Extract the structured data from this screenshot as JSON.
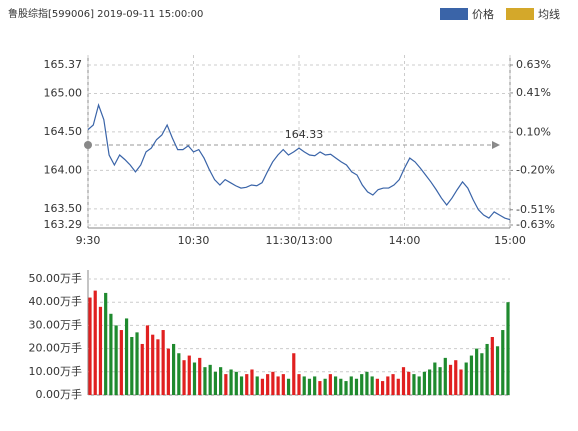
{
  "chart_data": [
    {
      "type": "line",
      "title": "鲁股综指[599006] 2019-09-11 15:00:00",
      "x": [
        0,
        3,
        6,
        9,
        12,
        15,
        18,
        21,
        24,
        27,
        30,
        33,
        36,
        39,
        42,
        45,
        48,
        51,
        54,
        57,
        60,
        63,
        66,
        69,
        72,
        75,
        78,
        81,
        84,
        87,
        90,
        93,
        96,
        99,
        102,
        105,
        108,
        111,
        114,
        117,
        120,
        123,
        126,
        129,
        132,
        135,
        138,
        141,
        144,
        147,
        150,
        153,
        156,
        159,
        162,
        165,
        168,
        171,
        174,
        177,
        180,
        183,
        186,
        189,
        192,
        195,
        198,
        201,
        204,
        207,
        210,
        213,
        216,
        219,
        222,
        225,
        228,
        231,
        234,
        237,
        240
      ],
      "series": [
        {
          "name": "价格",
          "color": "#3a64a8",
          "values": [
            164.53,
            164.59,
            164.85,
            164.66,
            164.2,
            164.07,
            164.2,
            164.14,
            164.07,
            163.98,
            164.07,
            164.24,
            164.29,
            164.4,
            164.46,
            164.59,
            164.42,
            164.27,
            164.27,
            164.32,
            164.24,
            164.27,
            164.16,
            164.01,
            163.88,
            163.81,
            163.88,
            163.84,
            163.8,
            163.77,
            163.78,
            163.81,
            163.8,
            163.84,
            163.98,
            164.11,
            164.2,
            164.27,
            164.2,
            164.24,
            164.29,
            164.24,
            164.2,
            164.19,
            164.24,
            164.2,
            164.21,
            164.16,
            164.11,
            164.07,
            163.98,
            163.94,
            163.81,
            163.72,
            163.68,
            163.75,
            163.77,
            163.77,
            163.81,
            163.88,
            164.03,
            164.16,
            164.11,
            164.03,
            163.94,
            163.85,
            163.75,
            163.64,
            163.55,
            163.64,
            163.75,
            163.85,
            163.77,
            163.62,
            163.49,
            163.42,
            163.38,
            163.46,
            163.42,
            163.38,
            163.36
          ]
        },
        {
          "name": "均线",
          "color": "#d4a82a"
        }
      ],
      "reference": 164.33,
      "up_color": "#e02020",
      "down_color": "#1f8a2e",
      "xlim": [
        0,
        240
      ],
      "xticks": [
        {
          "value": 0,
          "label": "9:30"
        },
        {
          "value": 60,
          "label": "10:30"
        },
        {
          "value": 120,
          "label": "11:30/13:00"
        },
        {
          "value": 180,
          "label": "14:00"
        },
        {
          "value": 240,
          "label": "15:00"
        }
      ],
      "ylim": [
        163.29,
        165.37
      ],
      "yticks": [
        165.37,
        {
          "value": 165,
          "label": "165.00"
        },
        {
          "value": 164.5,
          "label": "164.50"
        },
        {
          "value": 164,
          "label": "164.00"
        },
        {
          "value": 163.5,
          "label": "163.50"
        },
        163.29
      ],
      "y2lim": [
        -0.63,
        0.63
      ],
      "y2ticks": [
        {
          "value": 0.63,
          "label": "0.63%"
        },
        {
          "value": 0.41,
          "label": "0.41%"
        },
        {
          "value": 0.1,
          "label": "0.10%"
        },
        {
          "value": -0.2,
          "label": "-0.20%"
        },
        {
          "value": -0.51,
          "label": "-0.51%"
        },
        {
          "value": -0.63,
          "label": "-0.63%"
        }
      ],
      "grid": true
    },
    {
      "type": "bar",
      "x": [
        0,
        3,
        6,
        9,
        12,
        15,
        18,
        21,
        24,
        27,
        30,
        33,
        36,
        39,
        42,
        45,
        48,
        51,
        54,
        57,
        60,
        63,
        66,
        69,
        72,
        75,
        78,
        81,
        84,
        87,
        90,
        93,
        96,
        99,
        102,
        105,
        108,
        111,
        114,
        117,
        120,
        123,
        126,
        129,
        132,
        135,
        138,
        141,
        144,
        147,
        150,
        153,
        156,
        159,
        162,
        165,
        168,
        171,
        174,
        177,
        180,
        183,
        186,
        189,
        192,
        195,
        198,
        201,
        204,
        207,
        210,
        213,
        216,
        219,
        222,
        225,
        228,
        231,
        234,
        237,
        240
      ],
      "values": [
        42,
        45,
        38,
        44,
        35,
        30,
        28,
        33,
        25,
        27,
        22,
        30,
        26,
        24,
        28,
        20,
        22,
        18,
        15,
        17,
        14,
        16,
        12,
        13,
        10,
        12,
        9,
        11,
        10,
        8,
        9,
        11,
        8,
        7,
        9,
        10,
        8,
        9,
        7,
        18,
        9,
        8,
        7,
        8,
        6,
        7,
        9,
        8,
        7,
        6,
        8,
        7,
        9,
        10,
        8,
        7,
        6,
        8,
        9,
        7,
        12,
        10,
        9,
        8,
        10,
        11,
        14,
        12,
        16,
        13,
        15,
        11,
        14,
        17,
        20,
        18,
        22,
        25,
        21,
        28,
        40
      ],
      "xlim": [
        0,
        240
      ],
      "ylim": [
        0,
        50
      ],
      "yticks": [
        {
          "value": 50,
          "label": "50.00万手"
        },
        {
          "value": 40,
          "label": "40.00万手"
        },
        {
          "value": 30,
          "label": "30.00万手"
        },
        {
          "value": 20,
          "label": "20.00万手"
        },
        {
          "value": 10,
          "label": "10.00万手"
        },
        {
          "value": 0,
          "label": "0.00万手"
        }
      ],
      "grid": true
    }
  ]
}
